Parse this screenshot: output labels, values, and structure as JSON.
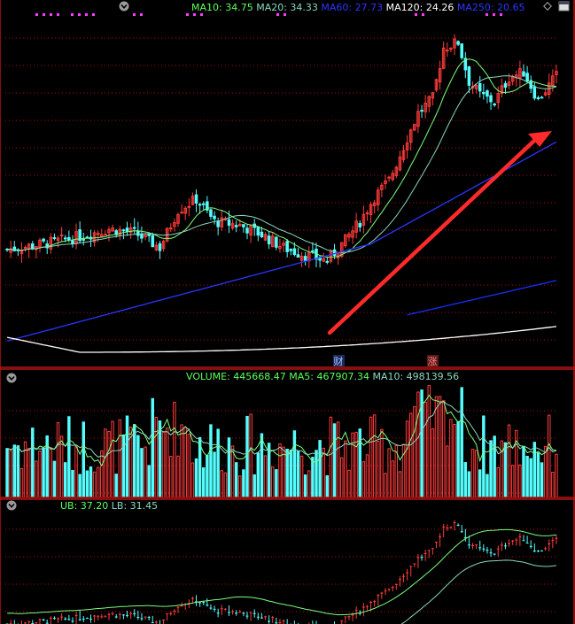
{
  "colors": {
    "background": "#000000",
    "up": "#ff3b3b",
    "down": "#54fcfc",
    "ma10": "#7cff7c",
    "ma20": "#8ad8c0",
    "ma60": "#2b36ff",
    "ma120": "#ffffff",
    "ma250": "#1530ff",
    "grid": "#b01010",
    "border": "#b41414",
    "text_green": "#5cff5c",
    "arrow": "#ff2a2a",
    "marker": "#ff3bff"
  },
  "main_legend": [
    {
      "text": "MA10: 34.75",
      "color": "#5cff5c"
    },
    {
      "text": "MA20: 34.33",
      "color": "#8ad8c0"
    },
    {
      "text": "MA60: 27.73",
      "color": "#2b36ff"
    },
    {
      "text": "MA120: 24.26",
      "color": "#ffffff"
    },
    {
      "text": "MA250: 20.65",
      "color": "#2b36ff"
    }
  ],
  "volume_legend": [
    {
      "text": "VOLUME: 445668.47",
      "color": "#5cff5c"
    },
    {
      "text": "MA5: 467907.34",
      "color": "#5cff5c"
    },
    {
      "text": "MA10: 498139.56",
      "color": "#8ad8c0"
    }
  ],
  "band_legend": [
    {
      "text": "UB: 37.20",
      "color": "#5cff5c"
    },
    {
      "text": "LB: 31.45",
      "color": "#8ad8c0"
    }
  ],
  "event_markers": [
    {
      "text": "财",
      "kind": "finance"
    },
    {
      "text": "涨",
      "kind": "limit-up"
    }
  ],
  "icons": {
    "collapse": "chevron-down-icon",
    "settings": "diamond-icon",
    "window": "window-icon"
  },
  "chart_data": {
    "type": "candlestick",
    "price_range": [
      22,
      40
    ],
    "volume_max": 950000,
    "band_range": [
      28,
      40
    ],
    "series_count": 152,
    "seed": 7,
    "ma_last": {
      "MA10": 34.75,
      "MA20": 34.33,
      "MA60": 27.73,
      "MA120": 24.26,
      "MA250": 20.65
    },
    "volume_last": {
      "VOLUME": 445668.47,
      "MA5": 467907.34,
      "MA10": 498139.56
    },
    "band_last": {
      "UB": 37.2,
      "LB": 31.45
    },
    "arrow": "rising trend arrow"
  }
}
